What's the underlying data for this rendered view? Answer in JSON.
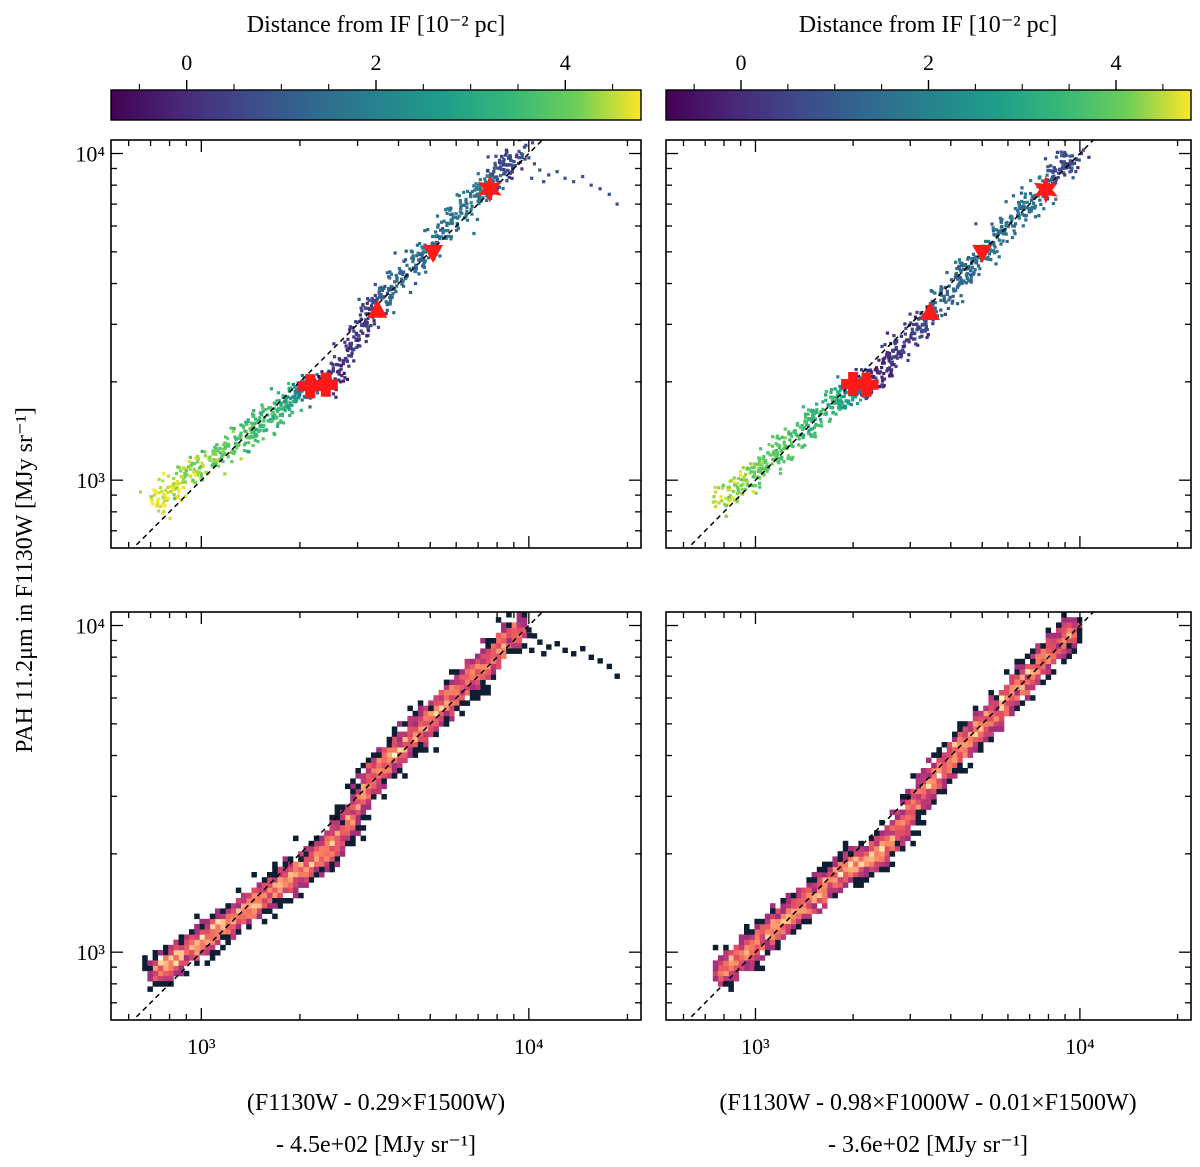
{
  "figure": {
    "ylabel": "PAH 11.2μm in F1130W [MJy sr⁻¹]",
    "colorbar_label": "Distance from IF [10⁻² pc]",
    "colorbar_ticks": [
      "0",
      "2",
      "4"
    ],
    "colors": {
      "marker": "#ff1a1a",
      "fit_line": "#000000"
    }
  },
  "chart_data": [
    {
      "type": "scatter",
      "panel": "top-left",
      "xlabel_line1": "(F1130W - 0.29×F1500W)",
      "xlabel_line2": "- 4.5e+02 [MJy sr⁻¹]",
      "xscale": "log",
      "yscale": "log",
      "xlim": [
        530,
        22000
      ],
      "ylim": [
        620,
        11000
      ],
      "colorbar": {
        "label": "Distance from IF [10⁻² pc]",
        "range": [
          -0.8,
          4.8
        ],
        "ticks": [
          0,
          2,
          4
        ],
        "cmap": "viridis"
      },
      "fit_line": {
        "slope_loglog": 1.0,
        "offset": 0.0
      },
      "segments": [
        {
          "x0": 720,
          "x1": 1900,
          "y0": 860,
          "y1": 1780,
          "c0": 4.7,
          "c1": 3.2
        },
        {
          "x0": 1800,
          "x1": 2500,
          "y0": 1780,
          "y1": 2000,
          "c0": 3.1,
          "c1": -0.3
        },
        {
          "x0": 2500,
          "x1": 3500,
          "y0": 2100,
          "y1": 3500,
          "c0": 0.0,
          "c1": 0.4
        },
        {
          "x0": 3500,
          "x1": 7900,
          "y0": 3500,
          "y1": 8600,
          "c0": 1.2,
          "c1": 1.8
        },
        {
          "x0": 7900,
          "x1": 9400,
          "y0": 8600,
          "y1": 9900,
          "c0": 0.6,
          "c1": 0.6
        }
      ],
      "outliers": [
        [
          10000,
          9700
        ],
        [
          10400,
          9300
        ],
        [
          10800,
          8900
        ],
        [
          11500,
          8600
        ],
        [
          12200,
          8800
        ],
        [
          12900,
          8400
        ],
        [
          13700,
          8200
        ],
        [
          14600,
          8500
        ],
        [
          15500,
          8000
        ],
        [
          16500,
          7800
        ],
        [
          17600,
          7500
        ],
        [
          18600,
          7000
        ],
        [
          10200,
          8400
        ],
        [
          11100,
          8200
        ]
      ],
      "markers": [
        {
          "shape": "cross",
          "x": 2150,
          "y": 1940
        },
        {
          "shape": "cross",
          "x": 2400,
          "y": 1960
        },
        {
          "shape": "triangle-up",
          "x": 3450,
          "y": 3300
        },
        {
          "shape": "triangle-down",
          "x": 5100,
          "y": 5000
        },
        {
          "shape": "star",
          "x": 7600,
          "y": 7800
        }
      ],
      "xticks": [],
      "yticks": [
        "10³",
        "10⁴"
      ]
    },
    {
      "type": "scatter",
      "panel": "top-right",
      "xscale": "log",
      "yscale": "log",
      "xlim": [
        530,
        22000
      ],
      "ylim": [
        620,
        11000
      ],
      "colorbar": {
        "label": "Distance from IF [10⁻² pc]",
        "range": [
          -0.8,
          4.8
        ],
        "ticks": [
          0,
          2,
          4
        ],
        "cmap": "viridis"
      },
      "fit_line": {
        "slope_loglog": 1.0,
        "offset": 0.0
      },
      "segments": [
        {
          "x0": 780,
          "x1": 1900,
          "y0": 860,
          "y1": 1850,
          "c0": 4.5,
          "c1": 3.0
        },
        {
          "x0": 1900,
          "x1": 2300,
          "y0": 1850,
          "y1": 2050,
          "c0": 2.8,
          "c1": 0.0
        },
        {
          "x0": 2300,
          "x1": 3500,
          "y0": 2000,
          "y1": 3300,
          "c0": -0.2,
          "c1": 0.8
        },
        {
          "x0": 3500,
          "x1": 7900,
          "y0": 3300,
          "y1": 8100,
          "c0": 1.2,
          "c1": 1.7
        },
        {
          "x0": 7900,
          "x1": 9600,
          "y0": 8100,
          "y1": 9900,
          "c0": 0.6,
          "c1": 0.6
        }
      ],
      "outliers": [],
      "markers": [
        {
          "shape": "cross",
          "x": 2000,
          "y": 1970
        },
        {
          "shape": "cross",
          "x": 2200,
          "y": 1960
        },
        {
          "shape": "triangle-up",
          "x": 3450,
          "y": 3250
        },
        {
          "shape": "triangle-down",
          "x": 5000,
          "y": 5000
        },
        {
          "shape": "star",
          "x": 7850,
          "y": 7750
        }
      ],
      "xticks": [],
      "yticks": []
    },
    {
      "type": "heatmap",
      "panel": "bottom-left",
      "xlabel_line1": "(F1130W - 0.29×F1500W)",
      "xlabel_line2": "- 4.5e+02 [MJy sr⁻¹]",
      "xscale": "log",
      "yscale": "log",
      "xlim": [
        530,
        22000
      ],
      "ylim": [
        620,
        11000
      ],
      "cmap": "magma",
      "fit_line": {
        "slope_loglog": 1.0,
        "offset": 0.0
      },
      "segments": [
        {
          "x0": 720,
          "x1": 1900,
          "y0": 860,
          "y1": 1700
        },
        {
          "x0": 1900,
          "x1": 2500,
          "y0": 1700,
          "y1": 2100
        },
        {
          "x0": 2500,
          "x1": 3400,
          "y0": 2100,
          "y1": 3500
        },
        {
          "x0": 3400,
          "x1": 9400,
          "y0": 3500,
          "y1": 9800
        }
      ],
      "outliers": [
        [
          10000,
          9700
        ],
        [
          10400,
          9300
        ],
        [
          10800,
          8900
        ],
        [
          11500,
          8600
        ],
        [
          12200,
          8800
        ],
        [
          12900,
          8400
        ],
        [
          13700,
          8200
        ],
        [
          14600,
          8500
        ],
        [
          15500,
          8000
        ],
        [
          16500,
          7800
        ],
        [
          17600,
          7500
        ],
        [
          18600,
          7000
        ],
        [
          10200,
          8400
        ],
        [
          11100,
          8200
        ]
      ],
      "xticks": [
        "10³",
        "10⁴"
      ],
      "yticks": [
        "10³",
        "10⁴"
      ]
    },
    {
      "type": "heatmap",
      "panel": "bottom-right",
      "xlabel_line1": "(F1130W - 0.98×F1000W - 0.01×F1500W)",
      "xlabel_line2": "- 3.6e+02 [MJy sr⁻¹]",
      "xscale": "log",
      "yscale": "log",
      "xlim": [
        530,
        22000
      ],
      "ylim": [
        620,
        11000
      ],
      "cmap": "magma",
      "fit_line": {
        "slope_loglog": 1.0,
        "offset": 0.0
      },
      "segments": [
        {
          "x0": 780,
          "x1": 1900,
          "y0": 860,
          "y1": 1800
        },
        {
          "x0": 1900,
          "x1": 2500,
          "y0": 1800,
          "y1": 2050
        },
        {
          "x0": 2500,
          "x1": 3500,
          "y0": 2050,
          "y1": 3400
        },
        {
          "x0": 3500,
          "x1": 9600,
          "y0": 3400,
          "y1": 9800
        }
      ],
      "outliers": [],
      "xticks": [
        "10³",
        "10⁴"
      ],
      "yticks": []
    }
  ]
}
